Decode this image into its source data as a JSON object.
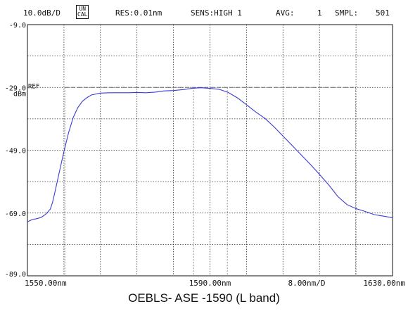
{
  "header": {
    "scale": "10.0dB/D",
    "uncal_top": "UN",
    "uncal_bottom": "CAL",
    "res": "RES:0.01nm",
    "sens": "SENS:HIGH 1",
    "avg_label": "AVG:",
    "avg_value": "1",
    "smpl_label": "SMPL:",
    "smpl_value": "501"
  },
  "caption": "OEBLS- ASE -1590 (L band)",
  "chart_data": {
    "type": "line",
    "xlim": [
      1550,
      1630
    ],
    "ylim": [
      -89,
      -9
    ],
    "ytick_labels": [
      {
        "value": -9,
        "text": "-9.0"
      },
      {
        "value": -29,
        "text": "-29.0"
      },
      {
        "value": -49,
        "text": "-49.0"
      },
      {
        "value": -69,
        "text": "-69.0"
      },
      {
        "value": -89,
        "text": "-89.0"
      }
    ],
    "ref_label": "REF",
    "unit_label": "dBm",
    "x_start_label": "1550.00nm",
    "x_center_label": "1590.00nm",
    "x_span_label": "8.00nm/D",
    "x_stop_label": "1630.00nm",
    "grid": true,
    "line_color": "#3b3bd6",
    "ref_level": -29,
    "ref_markers_x": [
      1558.2,
      1586.4,
      1593.8,
      1621.9
    ],
    "series": [
      {
        "x": [
          1550,
          1551,
          1552,
          1553,
          1554,
          1555,
          1555.5,
          1556,
          1557,
          1558,
          1559,
          1560,
          1561,
          1562,
          1563,
          1564,
          1566,
          1568,
          1570,
          1572,
          1574,
          1576,
          1578,
          1580,
          1582,
          1584,
          1586,
          1588,
          1590,
          1592,
          1594,
          1596,
          1598,
          1600,
          1602,
          1604,
          1606,
          1608,
          1610,
          1612,
          1614,
          1616,
          1618,
          1620,
          1622,
          1624,
          1626,
          1628,
          1630
        ],
        "y": [
          -71.8,
          -71.1,
          -70.8,
          -70.4,
          -69.4,
          -67.8,
          -65.6,
          -62.5,
          -55.9,
          -49.4,
          -43.5,
          -38.7,
          -35.5,
          -33.5,
          -32.3,
          -31.4,
          -30.8,
          -30.7,
          -30.7,
          -30.7,
          -30.6,
          -30.7,
          -30.5,
          -30.1,
          -30.0,
          -29.7,
          -29.3,
          -29.1,
          -29.3,
          -29.6,
          -30.6,
          -32.3,
          -34.5,
          -36.8,
          -38.8,
          -41.5,
          -44.5,
          -47.5,
          -50.5,
          -53.5,
          -56.7,
          -60.0,
          -63.7,
          -66.3,
          -67.6,
          -68.5,
          -69.5,
          -70.0,
          -70.5
        ]
      }
    ]
  }
}
